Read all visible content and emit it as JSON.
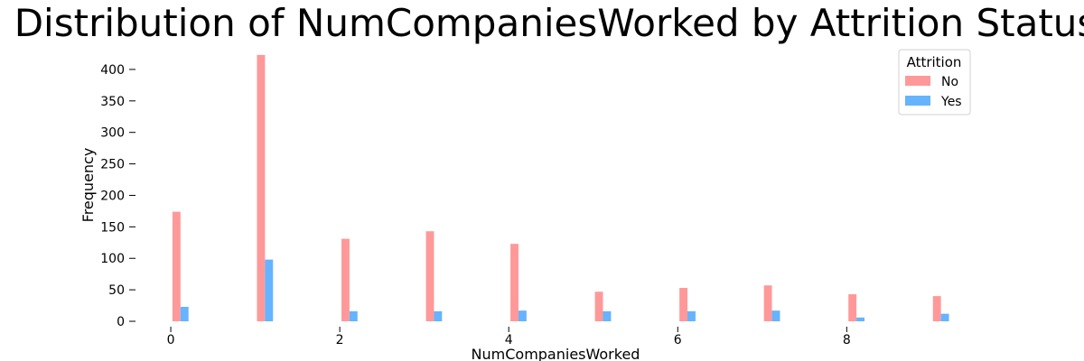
{
  "chart_data": {
    "type": "bar",
    "title": "Distribution of NumCompaniesWorked by Attrition Status",
    "xlabel": "NumCompaniesWorked",
    "ylabel": "Frequency",
    "x": [
      0,
      1,
      2,
      3,
      4,
      5,
      6,
      7,
      8,
      9
    ],
    "xlim": [
      -0.3,
      9.6
    ],
    "ylim": [
      0,
      430
    ],
    "xticks": [
      0,
      2,
      4,
      6,
      8
    ],
    "yticks": [
      0,
      50,
      100,
      150,
      200,
      250,
      300,
      350,
      400
    ],
    "grid": false,
    "legend": {
      "title": "Attrition",
      "placement": "top-right"
    },
    "series": [
      {
        "name": "No",
        "color": "#ff9999",
        "values": [
          174,
          423,
          131,
          143,
          123,
          47,
          53,
          57,
          43,
          40
        ]
      },
      {
        "name": "Yes",
        "color": "#66b3ff",
        "values": [
          23,
          98,
          16,
          16,
          17,
          16,
          16,
          17,
          6,
          12
        ]
      }
    ]
  }
}
